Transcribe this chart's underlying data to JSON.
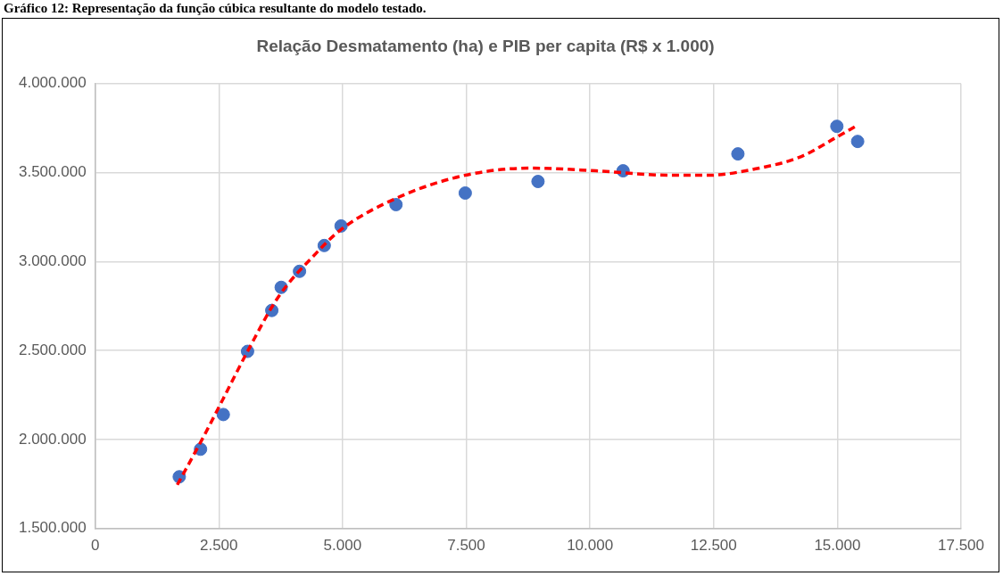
{
  "chart_data": {
    "type": "scatter",
    "title": "Relação Desmatamento (ha) e PIB per capita (R$ x 1.000)",
    "annotations": [
      "Gráfico 12: Representação da função cúbica resultante do modelo testado."
    ],
    "series": [
      {
        "type": "scatter",
        "color": "#4472c4",
        "marker": "circle",
        "x": [
          1700,
          2130,
          2590,
          3080,
          3570,
          3760,
          4130,
          4630,
          4970,
          6080,
          7480,
          8950,
          10670,
          12990,
          14990,
          15410
        ],
        "values": [
          1790000,
          1945000,
          2140000,
          2495000,
          2725000,
          2855000,
          2945000,
          3090000,
          3200000,
          3320000,
          3385000,
          3450000,
          3510000,
          3605000,
          3760000,
          3675000
        ]
      },
      {
        "type": "line",
        "color": "#ff0000",
        "marker": "none",
        "line_style": "dashed",
        "x": [
          1660,
          2190,
          2590,
          3080,
          3700,
          4460,
          4970,
          6080,
          7480,
          8800,
          10120,
          11630,
          12380,
          13330,
          14270,
          14990,
          15370
        ],
        "values": [
          1745000,
          2015000,
          2230000,
          2495000,
          2800000,
          3045000,
          3180000,
          3355000,
          3485000,
          3525000,
          3510000,
          3485000,
          3485000,
          3520000,
          3590000,
          3700000,
          3760000
        ]
      }
    ],
    "xlim": [
      0,
      17500
    ],
    "xticks": [
      {
        "value": 0,
        "label": "0"
      },
      {
        "value": 2500,
        "label": "2.500"
      },
      {
        "value": 5000,
        "label": "5.000"
      },
      {
        "value": 7500,
        "label": "7.500"
      },
      {
        "value": 10000,
        "label": "10.000"
      },
      {
        "value": 12500,
        "label": "12.500"
      },
      {
        "value": 15000,
        "label": "15.000"
      },
      {
        "value": 17500,
        "label": "17.500"
      }
    ],
    "ylim": [
      1500000,
      4000000
    ],
    "yticks": [
      {
        "value": 1500000,
        "label": "1.500.000"
      },
      {
        "value": 2000000,
        "label": "2.000.000"
      },
      {
        "value": 2500000,
        "label": "2.500.000"
      },
      {
        "value": 3000000,
        "label": "3.000.000"
      },
      {
        "value": 3500000,
        "label": "3.500.000"
      },
      {
        "value": 4000000,
        "label": "4.000.000"
      }
    ],
    "grid": true,
    "legend": false
  }
}
